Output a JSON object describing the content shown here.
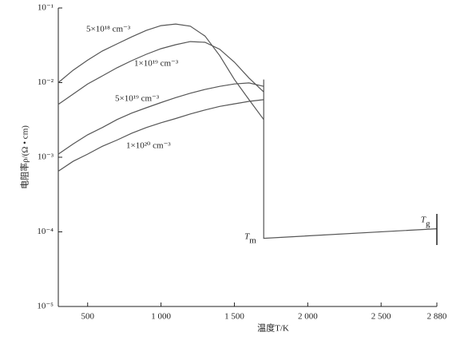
{
  "chart_data": {
    "type": "line",
    "xlabel": "温度T/K",
    "ylabel": "电阻率ρ/(Ω • cm)",
    "log_y": true,
    "xlim": [
      300,
      2880
    ],
    "ylim": [
      1e-05,
      0.1
    ],
    "xticks": [
      500,
      {
        "value": 1000,
        "label": "1 000"
      },
      {
        "value": 1500,
        "label": "1 500"
      },
      {
        "value": 2000,
        "label": "2 000"
      },
      {
        "value": 2500,
        "label": "2 500"
      },
      {
        "value": 2880,
        "label": "2 880"
      }
    ],
    "yticks": [
      {
        "value": 1e-05,
        "label": "10⁻⁵"
      },
      {
        "value": 0.0001,
        "label": "10⁻⁴"
      },
      {
        "value": 0.001,
        "label": "10⁻³"
      },
      {
        "value": 0.01,
        "label": "10⁻²"
      },
      {
        "value": 0.1,
        "label": "10⁻¹"
      }
    ],
    "x": [
      300,
      400,
      500,
      600,
      700,
      800,
      900,
      1000,
      1100,
      1200,
      1300,
      1400,
      1500,
      1600,
      1700
    ],
    "series": [
      {
        "name": "5×10¹⁸ cm⁻³",
        "color": "#555555",
        "values": [
          0.01,
          0.0146,
          0.02,
          0.0265,
          0.033,
          0.041,
          0.05,
          0.058,
          0.061,
          0.057,
          0.042,
          0.023,
          0.011,
          0.0059,
          0.0032
        ]
      },
      {
        "name": "1×10¹⁹ cm⁻³",
        "color": "#555555",
        "values": [
          0.0051,
          0.007,
          0.0096,
          0.0123,
          0.0158,
          0.0197,
          0.024,
          0.0285,
          0.0322,
          0.0355,
          0.0347,
          0.028,
          0.0188,
          0.0115,
          0.0075
        ]
      },
      {
        "name": "5×10¹⁹ cm⁻³",
        "color": "#555555",
        "values": [
          0.0011,
          0.0015,
          0.002,
          0.0025,
          0.0032,
          0.0039,
          0.0046,
          0.0054,
          0.0063,
          0.0072,
          0.0081,
          0.0089,
          0.0096,
          0.0099,
          0.0089
        ]
      },
      {
        "name": "1×10²⁰ cm⁻³",
        "color": "#555555",
        "values": [
          0.00065,
          0.00088,
          0.0011,
          0.0014,
          0.0017,
          0.0021,
          0.0025,
          0.0029,
          0.0033,
          0.0038,
          0.0043,
          0.0048,
          0.0052,
          0.0056,
          0.0059
        ]
      }
    ],
    "melt_line": {
      "x": [
        1700,
        1700,
        2880
      ],
      "values": [
        0.011,
        8.2e-05,
        0.00011
      ],
      "color": "#222222"
    },
    "annotations": [
      {
        "text": "T",
        "sub": "m",
        "x": 1700
      },
      {
        "text": "T",
        "sub": "g",
        "x": 2880
      }
    ]
  }
}
